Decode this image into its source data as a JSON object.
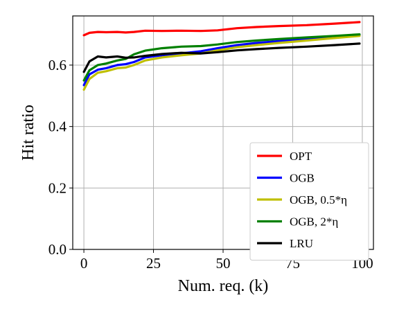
{
  "chart_data": {
    "type": "line",
    "title": "",
    "xlabel": "Num. req. (k)",
    "ylabel": "Hit ratio",
    "xlim": [
      -4,
      104
    ],
    "ylim": [
      0.0,
      0.76
    ],
    "xticks": [
      0,
      25,
      50,
      75,
      100
    ],
    "xtick_labels": [
      "0",
      "25",
      "50",
      "75",
      "100"
    ],
    "yticks": [
      0.0,
      0.2,
      0.4,
      0.6
    ],
    "ytick_labels": [
      "0.0",
      "0.2",
      "0.4",
      "0.6"
    ],
    "grid": true,
    "legend_position": "lower-right",
    "series": [
      {
        "name": "OPT",
        "color": "#ff0000",
        "x": [
          0,
          2,
          5,
          8,
          12,
          15,
          18,
          22,
          28,
          35,
          42,
          48,
          55,
          62,
          70,
          80,
          90,
          99
        ],
        "y": [
          0.697,
          0.705,
          0.708,
          0.707,
          0.708,
          0.706,
          0.708,
          0.712,
          0.711,
          0.712,
          0.711,
          0.713,
          0.72,
          0.724,
          0.727,
          0.73,
          0.735,
          0.74
        ]
      },
      {
        "name": "OGB",
        "color": "#0000ff",
        "x": [
          0,
          2,
          5,
          8,
          12,
          15,
          18,
          22,
          28,
          35,
          42,
          48,
          55,
          62,
          70,
          80,
          90,
          99
        ],
        "y": [
          0.535,
          0.57,
          0.585,
          0.59,
          0.6,
          0.603,
          0.61,
          0.625,
          0.632,
          0.638,
          0.645,
          0.655,
          0.665,
          0.672,
          0.678,
          0.685,
          0.692,
          0.698
        ]
      },
      {
        "name": "OGB, 0.5*η",
        "color": "#bfbf00",
        "x": [
          0,
          2,
          5,
          8,
          12,
          15,
          18,
          22,
          28,
          35,
          42,
          48,
          55,
          62,
          70,
          80,
          90,
          99
        ],
        "y": [
          0.52,
          0.555,
          0.575,
          0.58,
          0.59,
          0.592,
          0.6,
          0.615,
          0.625,
          0.632,
          0.638,
          0.648,
          0.658,
          0.665,
          0.672,
          0.68,
          0.688,
          0.695
        ]
      },
      {
        "name": "OGB, 2*η",
        "color": "#008000",
        "x": [
          0,
          2,
          5,
          8,
          12,
          15,
          18,
          22,
          28,
          35,
          42,
          48,
          55,
          62,
          70,
          80,
          90,
          99
        ],
        "y": [
          0.55,
          0.583,
          0.6,
          0.605,
          0.615,
          0.62,
          0.635,
          0.647,
          0.655,
          0.66,
          0.662,
          0.667,
          0.675,
          0.68,
          0.685,
          0.69,
          0.695,
          0.7
        ]
      },
      {
        "name": "LRU",
        "color": "#000000",
        "x": [
          0,
          2,
          5,
          8,
          12,
          15,
          18,
          22,
          28,
          35,
          42,
          48,
          55,
          62,
          70,
          80,
          90,
          99
        ],
        "y": [
          0.578,
          0.612,
          0.628,
          0.625,
          0.628,
          0.624,
          0.625,
          0.63,
          0.636,
          0.64,
          0.638,
          0.642,
          0.648,
          0.652,
          0.656,
          0.66,
          0.665,
          0.67
        ]
      }
    ]
  }
}
